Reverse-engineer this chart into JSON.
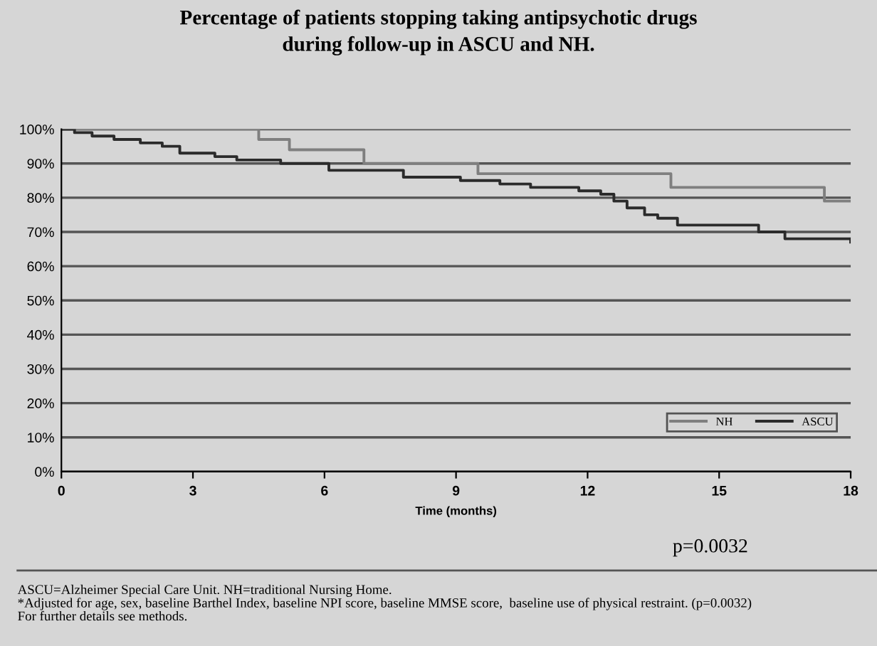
{
  "chart_data": {
    "type": "step",
    "title": "Percentage of patients stopping taking antipsychotic drugs\nduring follow-up in ASCU and NH.",
    "xlabel": "Time (months)",
    "xlim": [
      0,
      18
    ],
    "xticks": [
      0,
      3,
      6,
      9,
      12,
      15,
      18
    ],
    "ylim": [
      0,
      100
    ],
    "yticks": [
      {
        "value": 0,
        "label": "0%"
      },
      {
        "value": 10,
        "label": "10%"
      },
      {
        "value": 20,
        "label": "20%"
      },
      {
        "value": 30,
        "label": "30%"
      },
      {
        "value": 40,
        "label": "40%"
      },
      {
        "value": 50,
        "label": "50%"
      },
      {
        "value": 60,
        "label": "60%"
      },
      {
        "value": 70,
        "label": "70%"
      },
      {
        "value": 80,
        "label": "80%"
      },
      {
        "value": 90,
        "label": "90%"
      },
      {
        "value": 100,
        "label": "100%"
      }
    ],
    "grid": "y",
    "legend": "bottom right",
    "marker": "none",
    "line_style": "solid",
    "series": [
      {
        "name": "NH",
        "color": "#7f7f7f",
        "x": [
          0,
          4.5,
          5.2,
          6.9,
          9.5,
          13.9,
          17.4,
          18
        ],
        "values": [
          100,
          97,
          94,
          90,
          87,
          83,
          79,
          79
        ]
      },
      {
        "name": "ASCU",
        "color": "#2b2b2b",
        "x": [
          0,
          0.3,
          0.7,
          1.2,
          1.8,
          2.3,
          2.7,
          3.5,
          4.0,
          5.0,
          6.1,
          7.8,
          9.1,
          10.0,
          10.7,
          11.8,
          12.3,
          12.6,
          12.9,
          13.3,
          13.6,
          14.05,
          15.9,
          16.5,
          18.0
        ],
        "values": [
          100,
          99,
          98,
          97,
          96,
          95,
          93,
          92,
          91,
          90,
          88,
          86,
          85,
          84,
          83,
          82,
          81,
          79,
          77,
          75,
          74,
          72,
          70,
          68,
          67
        ]
      }
    ],
    "annotations": [
      "p=0.0032",
      "ASCU=Alzheimer Special Care Unit. NH=traditional Nursing Home.",
      "*Adjusted for age, sex, baseline Barthel Index, baseline NPI score, baseline MMSE score,  baseline use of physical restraint. (p=0.0032)",
      "For further details see methods."
    ]
  }
}
